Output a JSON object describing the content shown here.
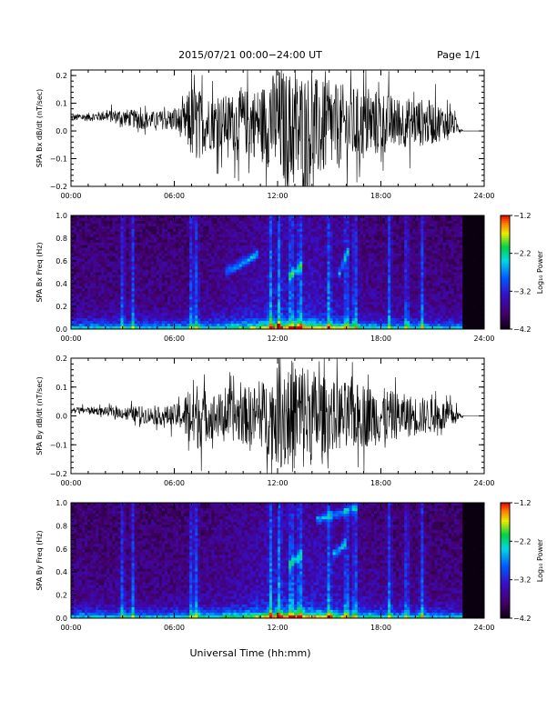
{
  "header": {
    "title": "2015/07/21  00:00−24:00 UT",
    "page": "Page 1/1"
  },
  "footer": {
    "xlabel": "Universal Time (hh:mm)"
  },
  "chart_data": [
    {
      "type": "line",
      "title": "",
      "ylabel": "SPA Bx dB/dt (nT/sec)",
      "xlabel": "",
      "x_ticks": [
        "00:00",
        "06:00",
        "12:00",
        "18:00",
        "24:00"
      ],
      "x_range_hours": [
        0,
        24
      ],
      "ylim": [
        -0.2,
        0.22
      ],
      "y_ticks": [
        "−0.2",
        "−0.1",
        "0.0",
        "0.1",
        "0.2"
      ],
      "y_tick_values": [
        -0.2,
        -0.1,
        0.0,
        0.1,
        0.2
      ],
      "series": [
        {
          "x_hours": [
            0,
            1,
            2,
            3,
            4,
            5,
            6,
            6.5,
            7,
            7.5,
            8,
            9,
            10,
            11,
            12,
            12.5,
            13,
            13.5,
            14,
            15,
            16,
            17,
            18,
            19,
            20,
            21,
            22,
            22.8,
            24
          ],
          "amplitude": [
            0.012,
            0.015,
            0.02,
            0.03,
            0.035,
            0.03,
            0.045,
            0.06,
            0.14,
            0.12,
            0.1,
            0.1,
            0.12,
            0.13,
            0.2,
            0.22,
            0.22,
            0.22,
            0.2,
            0.16,
            0.15,
            0.13,
            0.12,
            0.09,
            0.09,
            0.08,
            0.05,
            0.0,
            0.0
          ],
          "baseline": [
            0.048,
            0.05,
            0.055,
            0.05,
            0.04,
            0.04,
            0.04,
            0.03,
            0.03,
            0.03,
            0.03,
            0.03,
            0.03,
            0.03,
            0.03,
            0.0,
            0.0,
            0.0,
            0.0,
            0.01,
            0.02,
            0.02,
            0.03,
            0.03,
            0.03,
            0.03,
            0.03,
            0.0,
            0.0
          ]
        }
      ]
    },
    {
      "type": "heatmap",
      "title": "",
      "ylabel": "SPA Bx Freq (Hz)",
      "xlabel": "",
      "x_ticks": [
        "00:00",
        "06:00",
        "12:00",
        "18:00",
        "24:00"
      ],
      "x_range_hours": [
        0,
        24
      ],
      "ylim": [
        0,
        1.0
      ],
      "y_ticks": [
        "0.0",
        "0.2",
        "0.4",
        "0.6",
        "0.8",
        "1.0"
      ],
      "y_tick_values": [
        0.0,
        0.2,
        0.4,
        0.6,
        0.8,
        1.0
      ],
      "colorbar": {
        "label": "Log₁₀ Power",
        "ticks": [
          "−1.2",
          "−2.2",
          "−3.2",
          "−4.2"
        ],
        "tick_values": [
          -1.2,
          -2.2,
          -3.2,
          -4.2
        ],
        "range": [
          -4.2,
          -1.2
        ]
      },
      "data_end_hours": 22.8,
      "vertical_bursts_hours": [
        3.0,
        3.6,
        7.0,
        7.3,
        11.6,
        12.1,
        12.8,
        13.3,
        15.0,
        16.0,
        16.5,
        18.5,
        19.5,
        20.4
      ],
      "features": [
        {
          "x_hours": [
            9.0,
            10.8
          ],
          "freq_hz": [
            0.5,
            0.66
          ]
        },
        {
          "x_hours": [
            12.6,
            13.4
          ],
          "freq_hz": [
            0.45,
            0.55
          ]
        },
        {
          "x_hours": [
            15.6,
            16.2
          ],
          "freq_hz": [
            0.5,
            0.72
          ]
        }
      ]
    },
    {
      "type": "line",
      "title": "",
      "ylabel": "SPA By dB/dt (nT/sec)",
      "xlabel": "",
      "x_ticks": [
        "00:00",
        "06:00",
        "12:00",
        "18:00",
        "24:00"
      ],
      "x_range_hours": [
        0,
        24
      ],
      "ylim": [
        -0.2,
        0.2
      ],
      "y_ticks": [
        "−0.2",
        "−0.1",
        "0.0",
        "0.1",
        "0.2"
      ],
      "y_tick_values": [
        -0.2,
        -0.1,
        0.0,
        0.1,
        0.2
      ],
      "series": [
        {
          "x_hours": [
            0,
            1,
            2,
            3,
            4,
            5,
            6,
            6.5,
            7,
            7.5,
            8,
            9,
            10,
            11,
            12,
            12.5,
            13,
            13.5,
            14,
            15,
            16,
            17,
            18,
            19,
            20,
            21,
            22,
            22.8,
            24
          ],
          "amplitude": [
            0.01,
            0.012,
            0.015,
            0.02,
            0.03,
            0.03,
            0.04,
            0.05,
            0.14,
            0.11,
            0.08,
            0.08,
            0.1,
            0.11,
            0.17,
            0.2,
            0.2,
            0.2,
            0.17,
            0.12,
            0.12,
            0.11,
            0.1,
            0.08,
            0.07,
            0.06,
            0.05,
            0.0,
            0.0
          ],
          "baseline": [
            0.02,
            0.02,
            0.015,
            0.01,
            0.005,
            0.0,
            0.0,
            0.0,
            0.0,
            0.0,
            0.0,
            0.0,
            0.0,
            0.0,
            0.0,
            0.0,
            0.0,
            0.0,
            0.0,
            0.0,
            0.0,
            0.0,
            0.0,
            0.0,
            0.0,
            0.0,
            0.0,
            0.0,
            0.0
          ]
        }
      ]
    },
    {
      "type": "heatmap",
      "title": "",
      "ylabel": "SPA By Freq (Hz)",
      "xlabel": "",
      "x_ticks": [
        "00:00",
        "06:00",
        "12:00",
        "18:00",
        "24:00"
      ],
      "x_range_hours": [
        0,
        24
      ],
      "ylim": [
        0,
        1.0
      ],
      "y_ticks": [
        "0.0",
        "0.2",
        "0.4",
        "0.6",
        "0.8",
        "1.0"
      ],
      "y_tick_values": [
        0.0,
        0.2,
        0.4,
        0.6,
        0.8,
        1.0
      ],
      "colorbar": {
        "label": "Log₁₀ Power",
        "ticks": [
          "−1.2",
          "−2.2",
          "−3.2",
          "−4.2"
        ],
        "tick_values": [
          -1.2,
          -2.2,
          -3.2,
          -4.2
        ],
        "range": [
          -4.2,
          -1.2
        ]
      },
      "data_end_hours": 22.8,
      "vertical_bursts_hours": [
        3.0,
        3.6,
        7.0,
        7.3,
        11.6,
        12.1,
        12.8,
        13.3,
        15.0,
        16.0,
        16.5,
        18.5,
        19.5,
        20.4
      ],
      "features": [
        {
          "x_hours": [
            14.2,
            16.6
          ],
          "freq_hz": [
            0.85,
            0.95
          ]
        },
        {
          "x_hours": [
            15.2,
            16.0
          ],
          "freq_hz": [
            0.55,
            0.65
          ]
        },
        {
          "x_hours": [
            12.6,
            13.4
          ],
          "freq_hz": [
            0.45,
            0.55
          ]
        }
      ]
    }
  ]
}
